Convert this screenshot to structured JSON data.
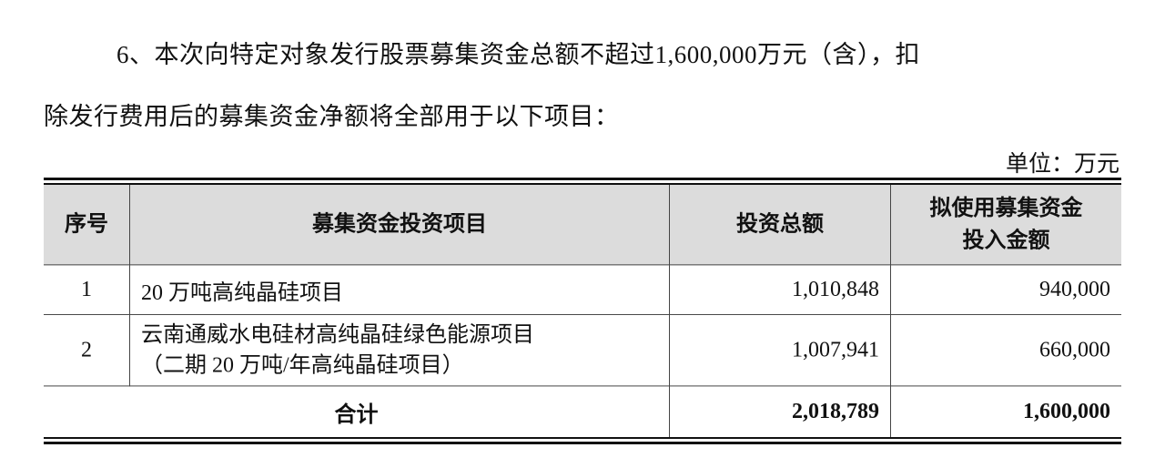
{
  "paragraph": {
    "line1": "6、本次向特定对象发行股票募集资金总额不超过1,600,000万元（含），扣",
    "line2": "除发行费用后的募集资金净额将全部用于以下项目："
  },
  "unit": "单位：万元",
  "table": {
    "headers": [
      "序号",
      "募集资金投资项目",
      "投资总额",
      "拟使用募集资金投入金额"
    ],
    "headers_line": {
      "col4_a": "拟使用募集资金",
      "col4_b": "投入金额"
    },
    "rows": [
      {
        "no": "1",
        "project": "20 万吨高纯晶硅项目",
        "project_b": "",
        "total": "1,010,848",
        "use": "940,000"
      },
      {
        "no": "2",
        "project": "云南通威水电硅材高纯晶硅绿色能源项目",
        "project_b": "（二期 20 万吨/年高纯晶硅项目）",
        "total": "1,007,941",
        "use": "660,000"
      }
    ],
    "total": {
      "label": "合计",
      "total": "2,018,789",
      "use": "1,600,000"
    }
  }
}
